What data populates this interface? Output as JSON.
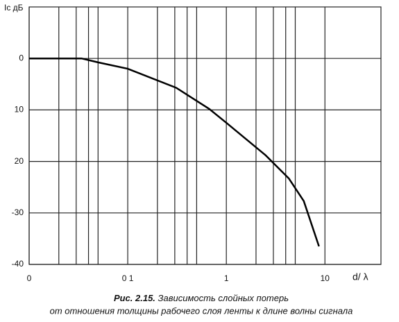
{
  "chart_data": {
    "type": "line",
    "y_label": "Iс дБ",
    "x_label": "d/ λ",
    "caption_number": "Рис. 2.15.",
    "caption_line1": "Зависимость слойных потерь",
    "caption_line2": "от отношения толщины рабочего слоя ленты к длине волны сигнала",
    "x_scale": "log",
    "xlim": [
      0.01,
      37
    ],
    "ylim": [
      -40,
      10
    ],
    "grid": true,
    "xticks": [
      {
        "value": 0.01,
        "label": "0"
      },
      {
        "value": 0.1,
        "label": "0 1"
      },
      1,
      10
    ],
    "x_minor_ticks": [
      0.02,
      0.03,
      0.04,
      0.05,
      0.2,
      0.3,
      0.4,
      0.5,
      2,
      3,
      4,
      5
    ],
    "yticks": [
      0,
      {
        "value": -10,
        "label": "10"
      },
      {
        "value": -20,
        "label": "20"
      },
      -30,
      -40
    ],
    "x": [
      0.01,
      0.034,
      0.051,
      0.1,
      0.31,
      0.67,
      1,
      2.5,
      4.3,
      6.1,
      8.7
    ],
    "series": [
      {
        "color": "#000000",
        "values": [
          0,
          0,
          -0.8,
          -2,
          -5.7,
          -9.8,
          -12.5,
          -18.8,
          -23.3,
          -27.7,
          -36.5
        ]
      }
    ]
  }
}
